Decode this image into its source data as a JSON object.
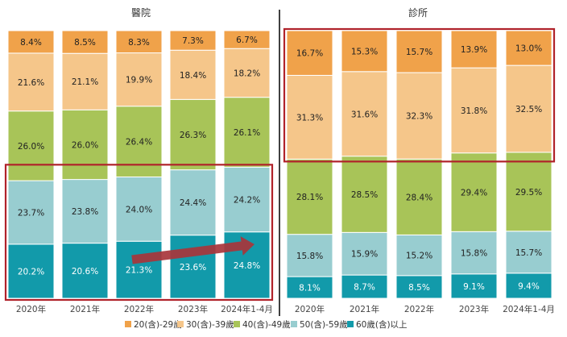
{
  "chart_data": [
    {
      "type": "bar",
      "stacked": "100%",
      "title": "醫院",
      "categories": [
        "2020年",
        "2021年",
        "2022年",
        "2023年",
        "2024年1-4月"
      ],
      "series": [
        {
          "name": "60歲(含)以上",
          "values": [
            20.2,
            20.6,
            21.3,
            23.6,
            24.8
          ]
        },
        {
          "name": "50(含)-59歲",
          "values": [
            23.7,
            23.8,
            24.0,
            24.4,
            24.2
          ]
        },
        {
          "name": "40(含)-49歲",
          "values": [
            26.0,
            26.0,
            26.4,
            26.3,
            26.1
          ]
        },
        {
          "name": "30(含)-39歲",
          "values": [
            21.6,
            21.1,
            19.9,
            18.4,
            18.2
          ]
        },
        {
          "name": "20(含)-29歲",
          "values": [
            8.4,
            8.5,
            8.3,
            7.3,
            6.7
          ]
        }
      ]
    },
    {
      "type": "bar",
      "stacked": "100%",
      "title": "診所",
      "categories": [
        "2020年",
        "2021年",
        "2022年",
        "2023年",
        "2024年1-4月"
      ],
      "series": [
        {
          "name": "60歲(含)以上",
          "values": [
            8.1,
            8.7,
            8.5,
            9.1,
            9.4
          ]
        },
        {
          "name": "50(含)-59歲",
          "values": [
            15.8,
            15.9,
            15.2,
            15.8,
            15.7
          ]
        },
        {
          "name": "40(含)-49歲",
          "values": [
            28.1,
            28.5,
            28.4,
            29.4,
            29.5
          ]
        },
        {
          "name": "30(含)-39歲",
          "values": [
            31.3,
            31.6,
            32.3,
            31.8,
            32.5
          ]
        },
        {
          "name": "20(含)-29歲",
          "values": [
            16.7,
            15.3,
            15.7,
            13.9,
            13.0
          ]
        }
      ]
    }
  ],
  "legend": [
    {
      "label": "20(含)-29歲",
      "color": "#F0A24A"
    },
    {
      "label": "30(含)-39歲",
      "color": "#F5C68A"
    },
    {
      "label": "40(含)-49歲",
      "color": "#A8C458"
    },
    {
      "label": "50(含)-59歲",
      "color": "#98CDD0"
    },
    {
      "label": "60歲(含)以上",
      "color": "#129AAA"
    }
  ],
  "colors": {
    "highlight_box": "#B0222A",
    "trend_arrow": "#A8353B",
    "divider": "#000000"
  }
}
